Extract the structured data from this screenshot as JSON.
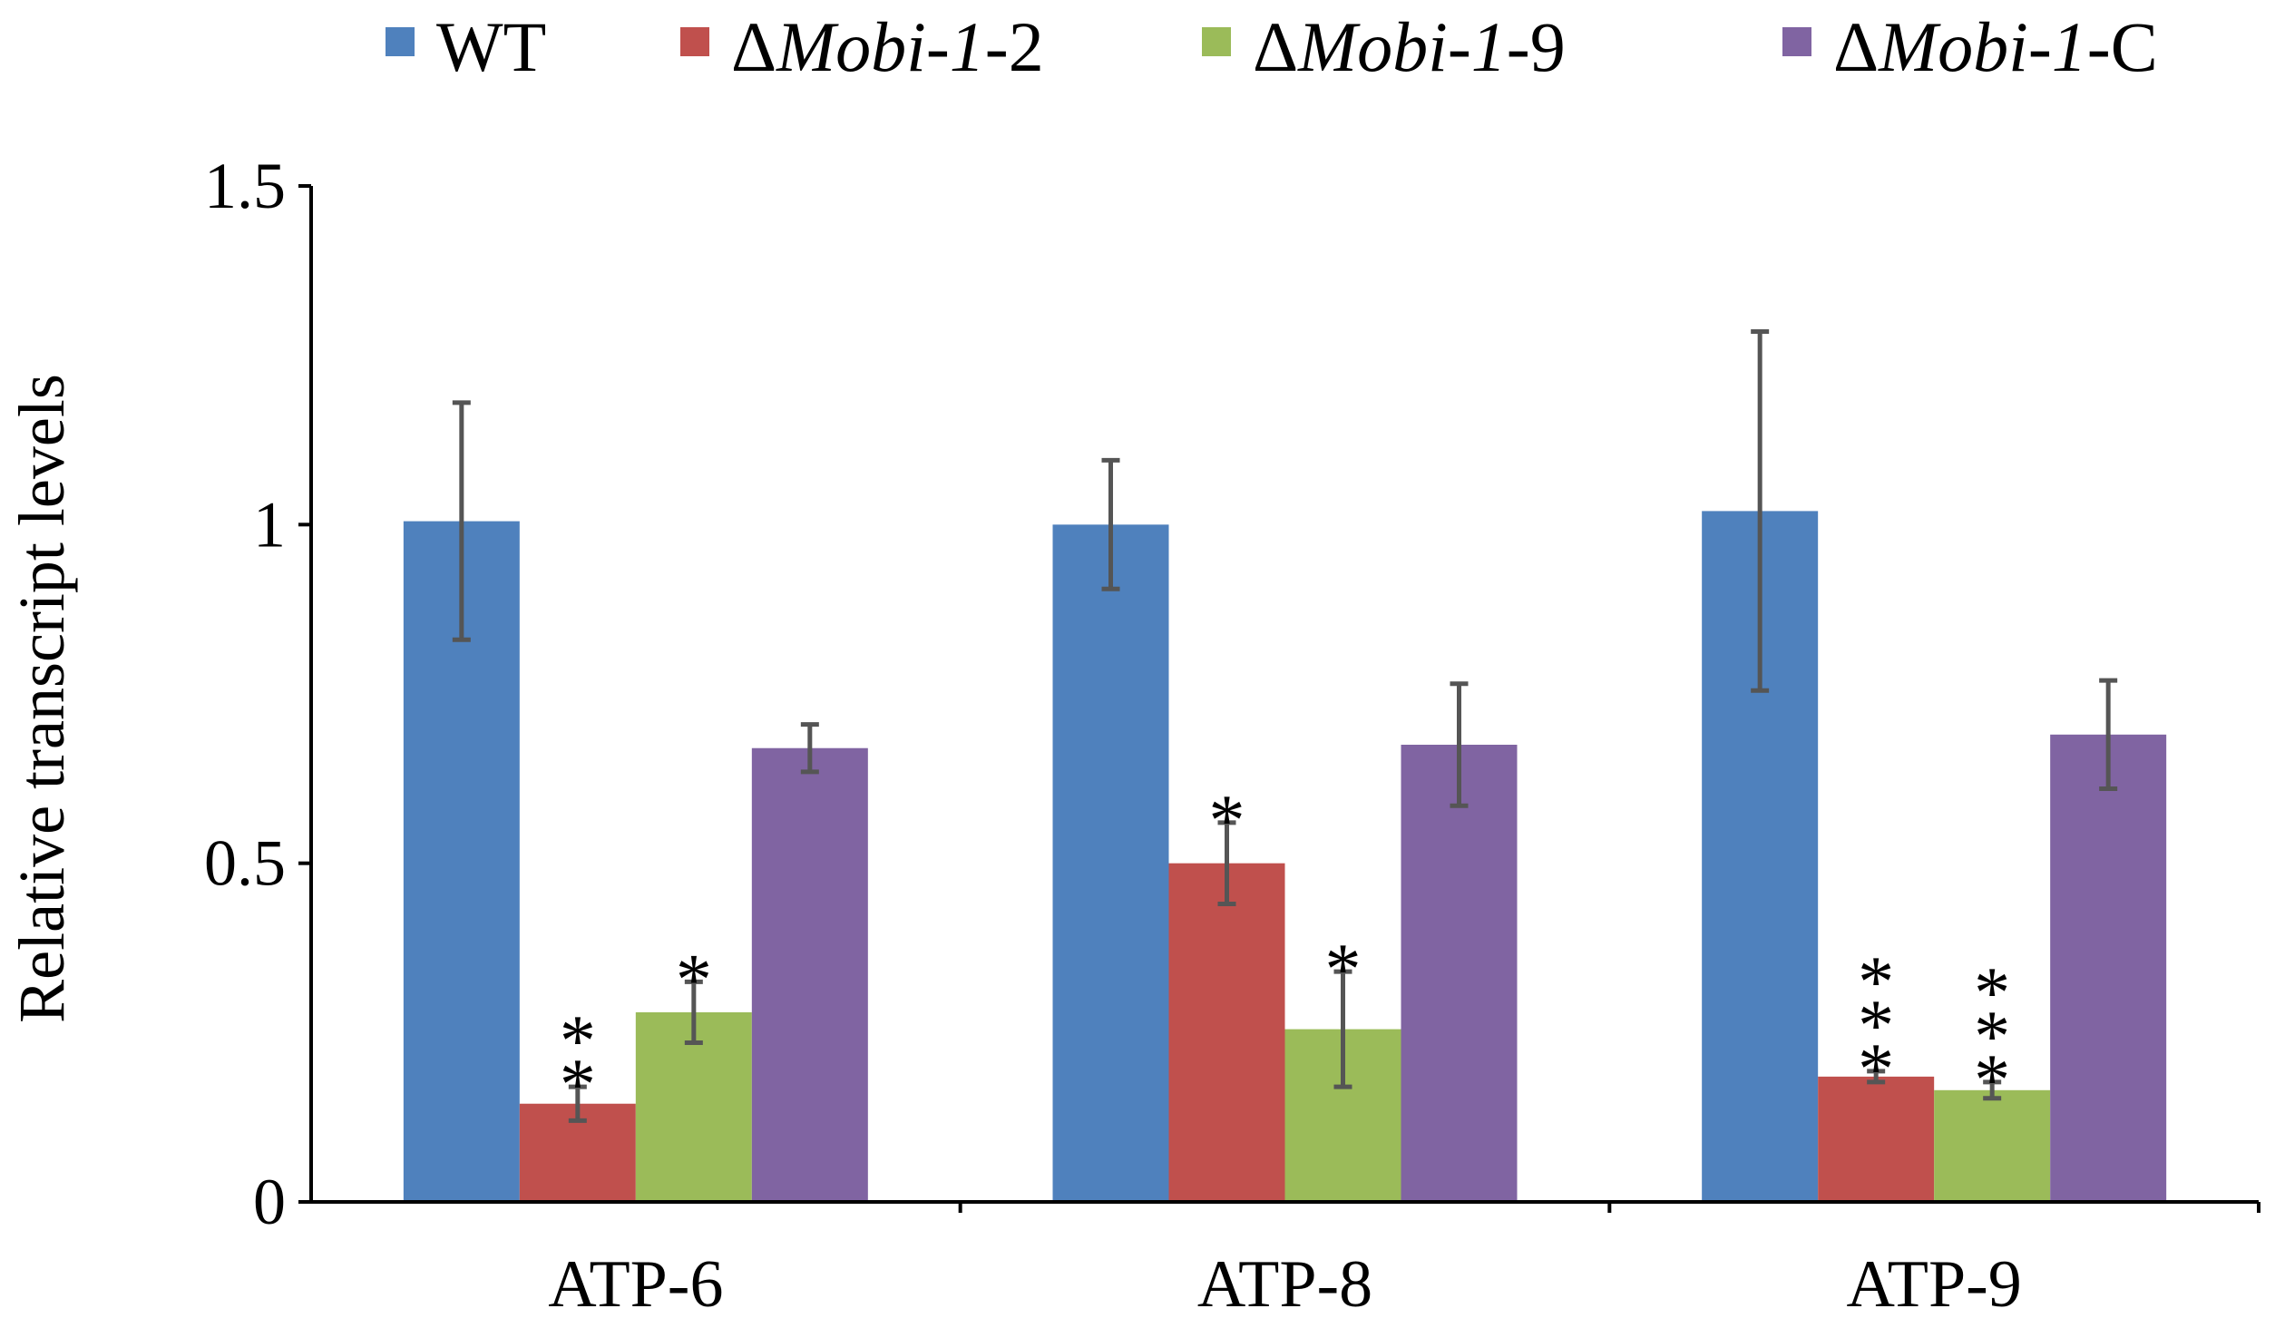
{
  "chart_data": {
    "type": "bar",
    "title": "",
    "xlabel": "",
    "ylabel": "Relative transcript levels",
    "ylim": [
      0,
      1.5
    ],
    "yticks": [
      "0",
      "0.5",
      "1",
      "1.5"
    ],
    "ytick_values": [
      0,
      0.5,
      1,
      1.5
    ],
    "grid": false,
    "legend_position": "top",
    "categories": [
      "ATP-6",
      "ATP-8",
      "ATP-9"
    ],
    "series": [
      {
        "name": "WT",
        "legend_prefix": "",
        "legend_italic": "",
        "legend_suffix": "WT",
        "color": "#4f81bd",
        "values": [
          1.005,
          1.0,
          1.02
        ],
        "errors": [
          0.175,
          0.095,
          0.265
        ],
        "significance": [
          "",
          "",
          ""
        ]
      },
      {
        "name": "ΔMobi-1-2",
        "legend_prefix": "Δ",
        "legend_italic": "Mobi-1",
        "legend_suffix": "-2",
        "color": "#c0504d",
        "values": [
          0.145,
          0.5,
          0.185
        ],
        "errors": [
          0.025,
          0.06,
          0.008
        ],
        "significance": [
          "**",
          "*",
          "***"
        ]
      },
      {
        "name": "ΔMobi-1-9",
        "legend_prefix": "Δ",
        "legend_italic": "Mobi-1",
        "legend_suffix": "-9",
        "color": "#9bbb59",
        "values": [
          0.28,
          0.255,
          0.165
        ],
        "errors": [
          0.045,
          0.085,
          0.012
        ],
        "significance": [
          "*",
          "*",
          "***"
        ]
      },
      {
        "name": "ΔMobi-1-C",
        "legend_prefix": "Δ",
        "legend_italic": "Mobi-1",
        "legend_suffix": "-C",
        "color": "#8064a2",
        "values": [
          0.67,
          0.675,
          0.69
        ],
        "errors": [
          0.035,
          0.09,
          0.08
        ],
        "significance": [
          "",
          "",
          ""
        ]
      }
    ]
  }
}
